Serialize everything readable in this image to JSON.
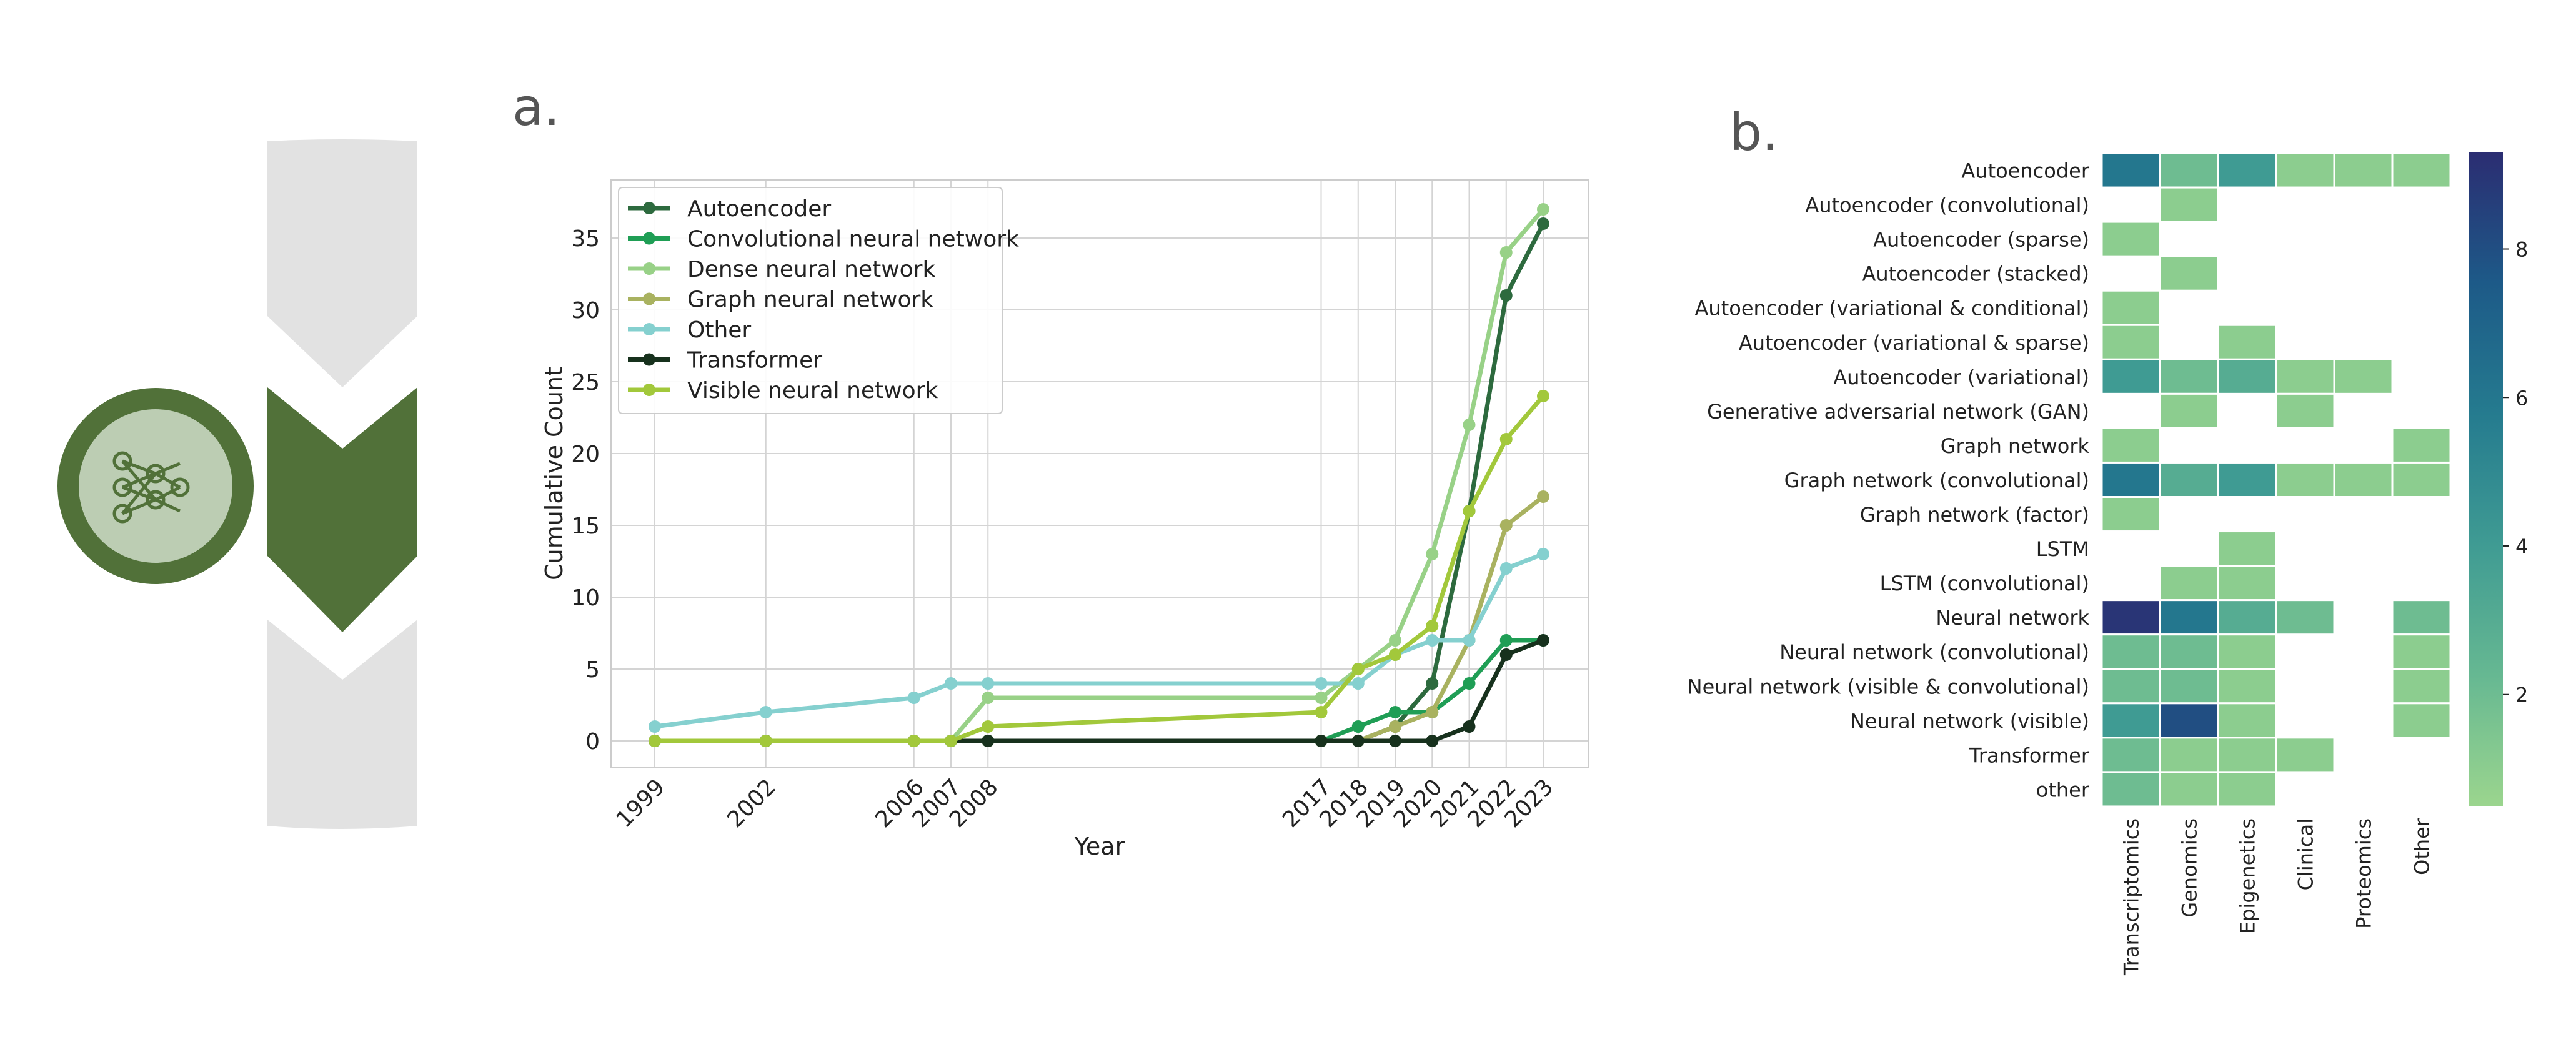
{
  "panel_a_label": "a.",
  "panel_b_label": "b.",
  "icons": {
    "network": "neural-network-icon",
    "flow": "chevron-flow-icon"
  },
  "colors": {
    "icon_dark": "#517139",
    "icon_light": "#bccdb3",
    "flow_gray": "#e2e2e2",
    "grid": "#d4d4d4"
  },
  "chart_data": [
    {
      "type": "line",
      "xlabel": "Year",
      "ylabel": "Cumulative Count",
      "x": [
        1999,
        2002,
        2006,
        2007,
        2008,
        2017,
        2018,
        2019,
        2020,
        2021,
        2022,
        2023
      ],
      "xlim": [
        1999,
        2023
      ],
      "ylim": [
        0,
        37
      ],
      "yticks": [
        0,
        5,
        10,
        15,
        20,
        25,
        30,
        35
      ],
      "grid": true,
      "legend": "top-left",
      "series": [
        {
          "name": "Autoencoder",
          "color": "#2d6a3e",
          "values": [
            0,
            0,
            0,
            0,
            0,
            0,
            0,
            1,
            4,
            16,
            31,
            36
          ]
        },
        {
          "name": "Convolutional neural network",
          "color": "#1f9e55",
          "values": [
            0,
            0,
            0,
            0,
            0,
            0,
            1,
            2,
            2,
            4,
            7,
            7
          ]
        },
        {
          "name": "Dense neural network",
          "color": "#98d187",
          "values": [
            0,
            0,
            0,
            0,
            3,
            3,
            5,
            7,
            13,
            22,
            34,
            37
          ]
        },
        {
          "name": "Graph neural network",
          "color": "#a9b260",
          "values": [
            0,
            0,
            0,
            0,
            0,
            0,
            0,
            1,
            2,
            7,
            15,
            17
          ]
        },
        {
          "name": "Other",
          "color": "#85d0cf",
          "values": [
            1,
            2,
            3,
            4,
            4,
            4,
            4,
            6,
            7,
            7,
            12,
            13
          ]
        },
        {
          "name": "Transformer",
          "color": "#17311d",
          "values": [
            0,
            0,
            0,
            0,
            0,
            0,
            0,
            0,
            0,
            1,
            6,
            7
          ]
        },
        {
          "name": "Visible neural network",
          "color": "#a2c83b",
          "values": [
            0,
            0,
            0,
            0,
            1,
            2,
            5,
            6,
            8,
            16,
            21,
            24
          ]
        }
      ]
    },
    {
      "type": "heatmap",
      "rows": [
        "Autoencoder",
        "Autoencoder (convolutional)",
        "Autoencoder (sparse)",
        "Autoencoder (stacked)",
        "Autoencoder (variational & conditional)",
        "Autoencoder (variational & sparse)",
        "Autoencoder (variational)",
        "Generative adversarial network (GAN)",
        "Graph network",
        "Graph network (convolutional)",
        "Graph network (factor)",
        "LSTM",
        "LSTM (convolutional)",
        "Neural network",
        "Neural network (convolutional)",
        "Neural network (visible & convolutional)",
        "Neural network (visible)",
        "Transformer",
        "other"
      ],
      "columns": [
        "Transcriptomics",
        "Genomics",
        "Epigenetics",
        "Clinical",
        "Proteomics",
        "Other"
      ],
      "values": [
        [
          6,
          2,
          4,
          1,
          1,
          1
        ],
        [
          null,
          1,
          null,
          null,
          null,
          null
        ],
        [
          1,
          null,
          null,
          null,
          null,
          null
        ],
        [
          null,
          1,
          null,
          null,
          null,
          null
        ],
        [
          1,
          null,
          null,
          null,
          null,
          null
        ],
        [
          1,
          null,
          1,
          null,
          null,
          null
        ],
        [
          4,
          2,
          3,
          1,
          1,
          null
        ],
        [
          null,
          1,
          null,
          1,
          null,
          null
        ],
        [
          1,
          null,
          null,
          null,
          null,
          1
        ],
        [
          6,
          3,
          4,
          1,
          1,
          1
        ],
        [
          1,
          null,
          null,
          null,
          null,
          null
        ],
        [
          null,
          null,
          1,
          null,
          null,
          null
        ],
        [
          null,
          1,
          1,
          null,
          null,
          null
        ],
        [
          9,
          6,
          3,
          2,
          null,
          2
        ],
        [
          2,
          2,
          1,
          null,
          null,
          1
        ],
        [
          2,
          2,
          1,
          null,
          null,
          1
        ],
        [
          4,
          8,
          1,
          null,
          null,
          1
        ],
        [
          2,
          1,
          1,
          1,
          null,
          null
        ],
        [
          2,
          1,
          1,
          null,
          null,
          null
        ]
      ],
      "colorbar": {
        "min": 0.5,
        "max": 9.3,
        "ticks": [
          2,
          4,
          6,
          8
        ]
      }
    }
  ]
}
